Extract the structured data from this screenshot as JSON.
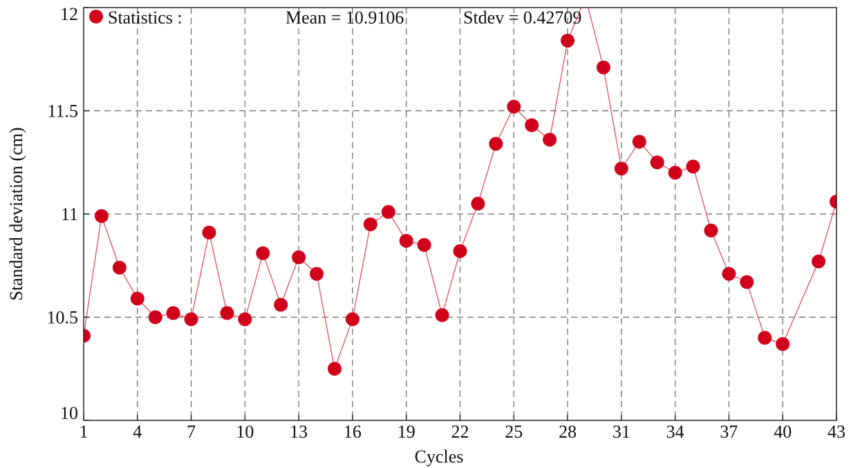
{
  "chart_data": {
    "type": "scatter",
    "xlabel": "Cycles",
    "ylabel": "Standard deviation (cm)",
    "xlim": [
      1,
      43
    ],
    "ylim": [
      10,
      12
    ],
    "x_ticks": [
      1,
      4,
      7,
      10,
      13,
      16,
      19,
      22,
      25,
      28,
      31,
      34,
      37,
      40,
      43
    ],
    "y_ticks": [
      10,
      10.5,
      11,
      11.5,
      12
    ],
    "x_tick_labels": [
      "1",
      "4",
      "7",
      "10",
      "13",
      "16",
      "19",
      "22",
      "25",
      "28",
      "31",
      "34",
      "37",
      "40",
      "43"
    ],
    "y_tick_labels": [
      "10",
      "10.5",
      "11",
      "11.5",
      "12"
    ],
    "grid": true,
    "legend": {
      "placement": "top-left",
      "label": "Statistics :"
    },
    "annotations": {
      "mean_text": "Mean = 10.9106",
      "stdev_text": "Stdev = 0.42709"
    },
    "colors": {
      "marker": "#d0021b",
      "line": "#e8495a",
      "grid": "#666666"
    },
    "series": [
      {
        "x": [
          1,
          2,
          3,
          4,
          5,
          6,
          7,
          8,
          9,
          10,
          11,
          12,
          13,
          14,
          15,
          16,
          17,
          18,
          19,
          20,
          21,
          22,
          23,
          24,
          25,
          26,
          27,
          28,
          29,
          30,
          31,
          32,
          33,
          34,
          35,
          36,
          37,
          38,
          39,
          40,
          41,
          42,
          43
        ],
        "y": [
          10.41,
          10.99,
          10.74,
          10.59,
          10.5,
          10.52,
          10.49,
          10.91,
          10.52,
          10.49,
          10.81,
          10.56,
          10.79,
          10.71,
          10.25,
          10.49,
          10.95,
          11.01,
          10.87,
          10.85,
          10.51,
          10.82,
          11.05,
          11.34,
          11.52,
          11.43,
          11.36,
          11.84,
          12.05,
          11.71,
          11.22,
          11.35,
          11.25,
          11.2,
          11.23,
          10.92,
          10.71,
          10.67,
          10.4,
          10.37,
          10.57,
          10.77,
          11.06
        ],
        "visible_markers": [
          true,
          true,
          true,
          true,
          true,
          true,
          true,
          true,
          true,
          true,
          true,
          true,
          true,
          true,
          true,
          true,
          true,
          true,
          true,
          true,
          true,
          true,
          true,
          true,
          true,
          true,
          true,
          true,
          false,
          true,
          true,
          true,
          true,
          true,
          true,
          true,
          true,
          true,
          true,
          true,
          false,
          true,
          true
        ]
      }
    ]
  }
}
